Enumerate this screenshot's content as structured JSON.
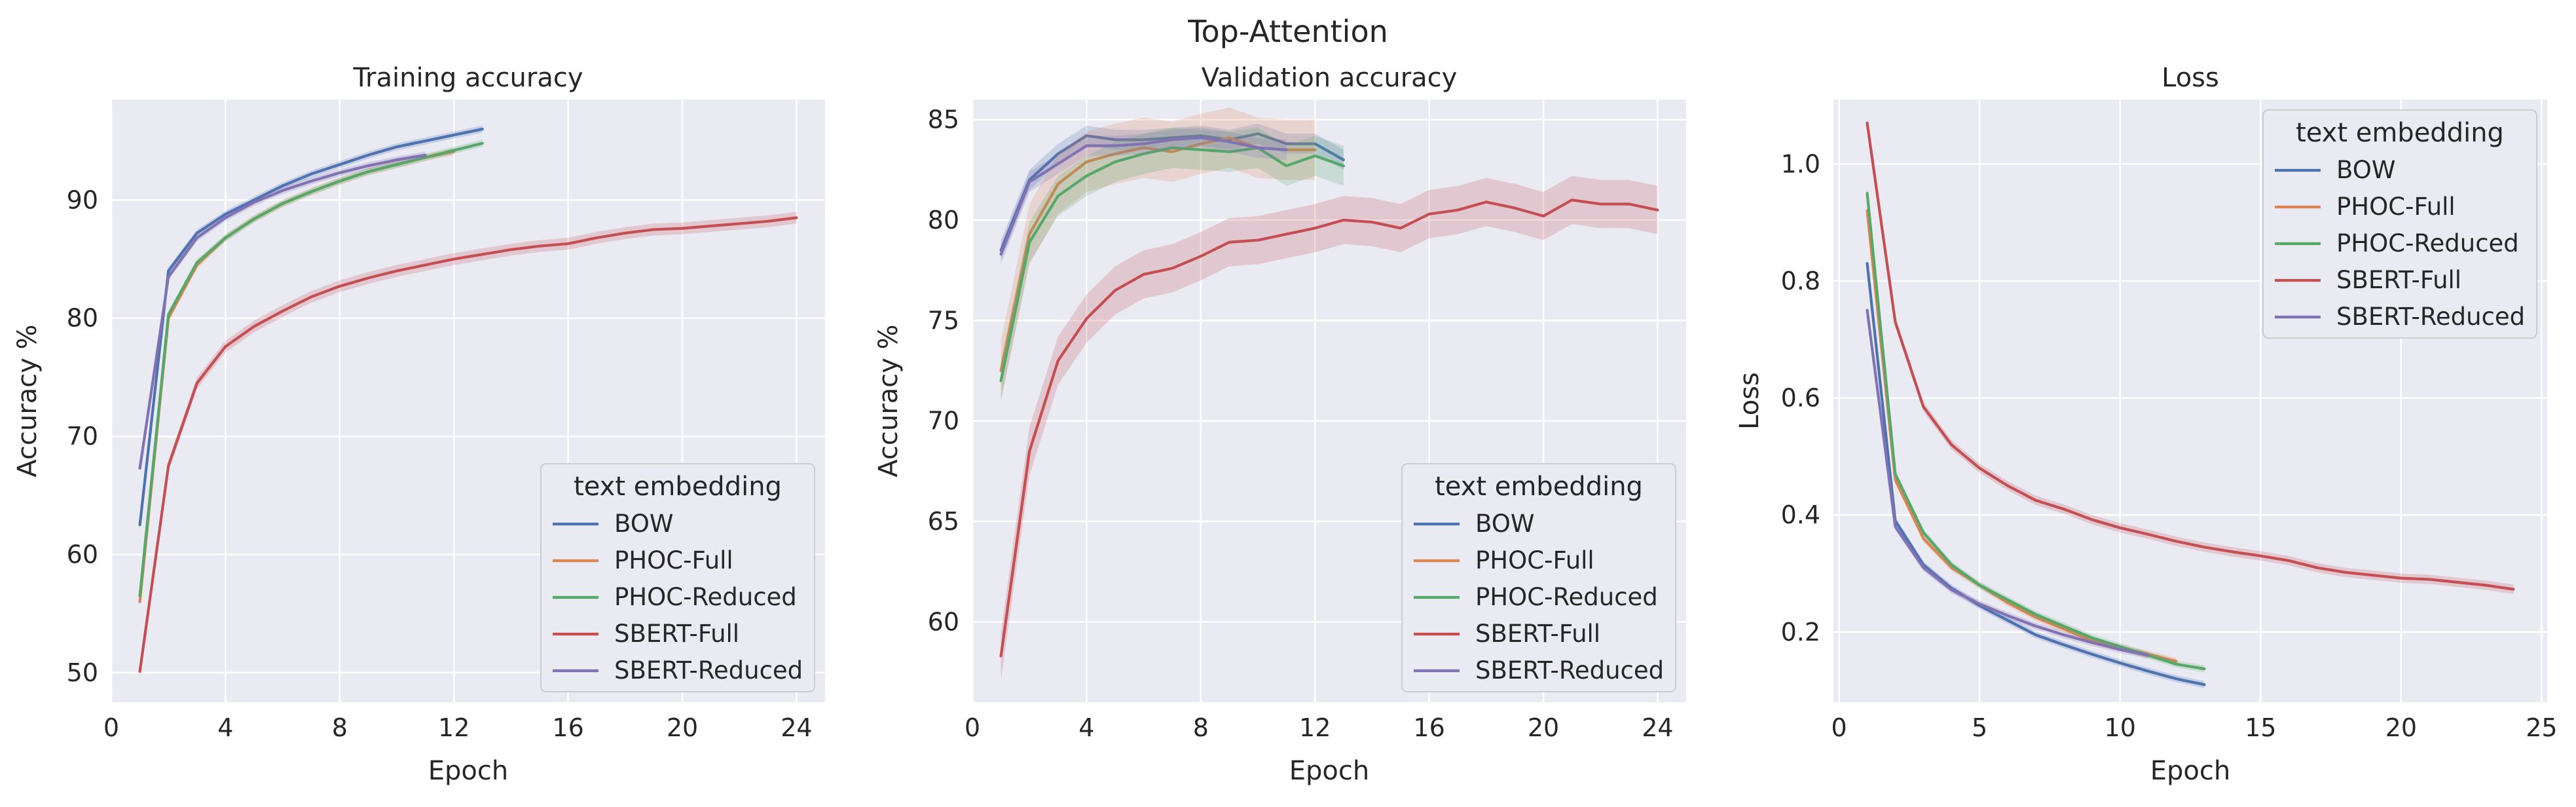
{
  "figure_title": "Top-Attention",
  "chart_data": [
    {
      "type": "line",
      "title": "Training accuracy",
      "xlabel": "Epoch",
      "ylabel": "Accuracy %",
      "xlim": [
        0,
        25
      ],
      "ylim": [
        47.5,
        98.5
      ],
      "xticks": [
        0,
        4,
        8,
        12,
        16,
        20,
        24
      ],
      "yticks": [
        50,
        60,
        70,
        80,
        90
      ],
      "grid": true,
      "legend": {
        "title": "text embedding",
        "placement": "lower-right"
      },
      "series": [
        {
          "name": "BOW",
          "color": "#4c72b0",
          "x": [
            1,
            2,
            3,
            4,
            5,
            6,
            7,
            8,
            9,
            10,
            11,
            12,
            13
          ],
          "y": [
            62.5,
            84.0,
            87.2,
            88.8,
            90.0,
            91.2,
            92.2,
            93.0,
            93.8,
            94.5,
            95.0,
            95.5,
            96.0
          ],
          "band": 0.3
        },
        {
          "name": "PHOC-Full",
          "color": "#dd8452",
          "x": [
            1,
            2,
            3,
            4,
            5,
            6,
            7,
            8,
            9,
            10,
            11,
            12
          ],
          "y": [
            56.0,
            80.0,
            84.5,
            86.8,
            88.4,
            89.7,
            90.7,
            91.6,
            92.4,
            93.0,
            93.6,
            94.1
          ],
          "band": 0.3
        },
        {
          "name": "PHOC-Reduced",
          "color": "#55a868",
          "x": [
            1,
            2,
            3,
            4,
            5,
            6,
            7,
            8,
            9,
            10,
            11,
            12,
            13
          ],
          "y": [
            56.5,
            80.3,
            84.7,
            86.8,
            88.4,
            89.7,
            90.7,
            91.6,
            92.4,
            93.0,
            93.6,
            94.2,
            94.8
          ],
          "band": 0.3
        },
        {
          "name": "SBERT-Full",
          "color": "#c44e52",
          "x": [
            1,
            2,
            3,
            4,
            5,
            6,
            7,
            8,
            9,
            10,
            11,
            12,
            13,
            14,
            15,
            16,
            17,
            18,
            19,
            20,
            21,
            22,
            23,
            24
          ],
          "y": [
            50.1,
            67.5,
            74.5,
            77.6,
            79.3,
            80.6,
            81.8,
            82.7,
            83.4,
            84.0,
            84.5,
            85.0,
            85.4,
            85.8,
            86.1,
            86.3,
            86.8,
            87.2,
            87.5,
            87.6,
            87.8,
            88.0,
            88.2,
            88.5
          ],
          "band": 0.5
        },
        {
          "name": "SBERT-Reduced",
          "color": "#8172b3",
          "x": [
            1,
            2,
            3,
            4,
            5,
            6,
            7,
            8,
            9,
            10,
            11
          ],
          "y": [
            67.3,
            83.5,
            86.8,
            88.5,
            89.8,
            90.8,
            91.6,
            92.3,
            92.9,
            93.4,
            93.8
          ],
          "band": 0.3
        }
      ]
    },
    {
      "type": "line",
      "title": "Validation accuracy",
      "xlabel": "Epoch",
      "ylabel": "Accuracy %",
      "xlim": [
        0,
        25
      ],
      "ylim": [
        56.0,
        86.0
      ],
      "xticks": [
        0,
        4,
        8,
        12,
        16,
        20,
        24
      ],
      "yticks": [
        60,
        65,
        70,
        75,
        80,
        85
      ],
      "grid": true,
      "legend": {
        "title": "text embedding",
        "placement": "lower-right"
      },
      "series": [
        {
          "name": "BOW",
          "color": "#4c72b0",
          "x": [
            1,
            2,
            3,
            4,
            5,
            6,
            7,
            8,
            9,
            10,
            11,
            12,
            13
          ],
          "y": [
            78.5,
            82.0,
            83.3,
            84.2,
            84.0,
            84.0,
            84.1,
            84.2,
            84.0,
            84.3,
            83.8,
            83.8,
            83.0
          ],
          "band": 0.5
        },
        {
          "name": "PHOC-Full",
          "color": "#dd8452",
          "x": [
            1,
            2,
            3,
            4,
            5,
            6,
            7,
            8,
            9,
            10,
            11,
            12
          ],
          "y": [
            72.5,
            79.3,
            81.8,
            82.9,
            83.3,
            83.6,
            83.4,
            83.8,
            84.1,
            83.6,
            83.5,
            83.5
          ],
          "band": 1.5
        },
        {
          "name": "PHOC-Reduced",
          "color": "#55a868",
          "x": [
            1,
            2,
            3,
            4,
            5,
            6,
            7,
            8,
            9,
            10,
            11,
            12,
            13
          ],
          "y": [
            72.0,
            78.9,
            81.2,
            82.2,
            82.9,
            83.3,
            83.6,
            83.5,
            83.4,
            83.6,
            82.7,
            83.2,
            82.7
          ],
          "band": 1.0
        },
        {
          "name": "SBERT-Full",
          "color": "#c44e52",
          "x": [
            1,
            2,
            3,
            4,
            5,
            6,
            7,
            8,
            9,
            10,
            11,
            12,
            13,
            14,
            15,
            16,
            17,
            18,
            19,
            20,
            21,
            22,
            23,
            24
          ],
          "y": [
            58.3,
            68.5,
            73.0,
            75.1,
            76.5,
            77.3,
            77.6,
            78.2,
            78.9,
            79.0,
            79.3,
            79.6,
            80.0,
            79.9,
            79.6,
            80.3,
            80.5,
            80.9,
            80.6,
            80.2,
            81.0,
            80.8,
            80.8,
            80.5
          ],
          "band": 1.2
        },
        {
          "name": "SBERT-Reduced",
          "color": "#8172b3",
          "x": [
            1,
            2,
            3,
            4,
            5,
            6,
            7,
            8,
            9,
            10,
            11
          ],
          "y": [
            78.3,
            81.9,
            82.8,
            83.7,
            83.7,
            83.8,
            84.0,
            84.1,
            83.9,
            83.6,
            83.5
          ],
          "band": 0.5
        }
      ]
    },
    {
      "type": "line",
      "title": "Loss",
      "xlabel": "Epoch",
      "ylabel": "Loss",
      "xlim": [
        -0.2,
        25.2
      ],
      "ylim": [
        0.08,
        1.11
      ],
      "xticks": [
        0,
        5,
        10,
        15,
        20,
        25
      ],
      "yticks": [
        0.2,
        0.4,
        0.6,
        0.8,
        1.0
      ],
      "grid": true,
      "legend": {
        "title": "text embedding",
        "placement": "top-right"
      },
      "series": [
        {
          "name": "BOW",
          "color": "#4c72b0",
          "x": [
            1,
            2,
            3,
            4,
            5,
            6,
            7,
            8,
            9,
            10,
            11,
            12,
            13
          ],
          "y": [
            0.83,
            0.39,
            0.315,
            0.275,
            0.245,
            0.22,
            0.195,
            0.178,
            0.162,
            0.147,
            0.133,
            0.12,
            0.11
          ],
          "band": 0.006
        },
        {
          "name": "PHOC-Full",
          "color": "#dd8452",
          "x": [
            1,
            2,
            3,
            4,
            5,
            6,
            7,
            8,
            9,
            10,
            11,
            12
          ],
          "y": [
            0.92,
            0.46,
            0.36,
            0.31,
            0.28,
            0.25,
            0.225,
            0.205,
            0.185,
            0.173,
            0.162,
            0.15
          ],
          "band": 0.006
        },
        {
          "name": "PHOC-Reduced",
          "color": "#55a868",
          "x": [
            1,
            2,
            3,
            4,
            5,
            6,
            7,
            8,
            9,
            10,
            11,
            12,
            13
          ],
          "y": [
            0.95,
            0.47,
            0.37,
            0.315,
            0.28,
            0.255,
            0.23,
            0.21,
            0.19,
            0.175,
            0.16,
            0.145,
            0.137
          ],
          "band": 0.006
        },
        {
          "name": "SBERT-Full",
          "color": "#c44e52",
          "x": [
            1,
            2,
            3,
            4,
            5,
            6,
            7,
            8,
            9,
            10,
            11,
            12,
            13,
            14,
            15,
            16,
            17,
            18,
            19,
            20,
            21,
            22,
            23,
            24
          ],
          "y": [
            1.07,
            0.73,
            0.585,
            0.52,
            0.48,
            0.45,
            0.425,
            0.41,
            0.392,
            0.378,
            0.367,
            0.355,
            0.345,
            0.337,
            0.33,
            0.322,
            0.31,
            0.302,
            0.297,
            0.292,
            0.29,
            0.285,
            0.28,
            0.273
          ],
          "band": 0.008
        },
        {
          "name": "SBERT-Reduced",
          "color": "#8172b3",
          "x": [
            1,
            2,
            3,
            4,
            5,
            6,
            7,
            8,
            9,
            10,
            11
          ],
          "y": [
            0.75,
            0.38,
            0.31,
            0.272,
            0.248,
            0.228,
            0.21,
            0.195,
            0.182,
            0.17,
            0.16
          ],
          "band": 0.006
        }
      ]
    }
  ]
}
